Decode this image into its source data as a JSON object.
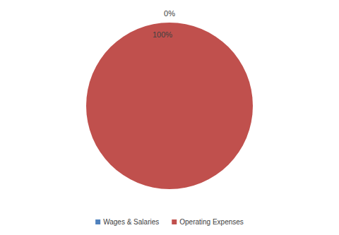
{
  "chart_data": {
    "type": "pie",
    "categories": [
      "Wages & Salaries",
      "Operating Expenses"
    ],
    "values": [
      0,
      100
    ],
    "value_labels": [
      "0%",
      "100%"
    ],
    "colors": [
      "#4f81bd",
      "#c0504d"
    ],
    "data_labels": true,
    "legend": "bottom"
  }
}
